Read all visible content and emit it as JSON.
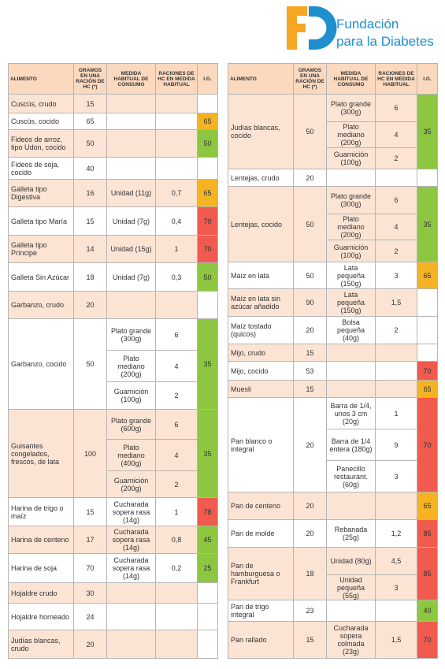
{
  "logo": {
    "line1": "Fundación",
    "line2": "para la Diabetes"
  },
  "columns": [
    "ALIMENTO",
    "GRAMOS EN UNA RACIÓN DE HC (*)",
    "MEDIDA HABITUAL DE CONSUMO",
    "RACIONES DE HC EN MEDIDA HABITUAL",
    "I.G."
  ],
  "tables": [
    {
      "rows": [
        {
          "food": "Cuscús, crudo",
          "grams": 15,
          "measures": []
        },
        {
          "food": "Cuscús, cocido",
          "grams": 65,
          "measures": [],
          "ig": 65,
          "ig_color": "#f5b324"
        },
        {
          "food": "Fideos de arroz, tipo Udon, cocido",
          "grams": 50,
          "measures": [],
          "ig": 50,
          "ig_color": "#8dc641"
        },
        {
          "food": "Fideos de soja, cocido",
          "grams": 40,
          "measures": []
        },
        {
          "food": "Galleta tipo Digestiva",
          "grams": 16,
          "measures": [
            {
              "measure": "Unidad (11g)",
              "rations": "0,7"
            }
          ],
          "ig": 65,
          "ig_color": "#f5b324"
        },
        {
          "food": "Galleta tipo María",
          "grams": 15,
          "measures": [
            {
              "measure": "Unidad (7g)",
              "rations": "0,4"
            }
          ],
          "ig": 70,
          "ig_color": "#f05a4f"
        },
        {
          "food": "Galleta tipo Príncipe",
          "grams": 14,
          "measures": [
            {
              "measure": "Unidad (15g)",
              "rations": "1"
            }
          ],
          "ig": 70,
          "ig_color": "#f05a4f"
        },
        {
          "food": "Galleta Sin Azúcar",
          "grams": 18,
          "measures": [
            {
              "measure": "Unidad (7g)",
              "rations": "0,3"
            }
          ],
          "ig": 50,
          "ig_color": "#8dc641"
        },
        {
          "food": "Garbanzo, crudo",
          "grams": 20,
          "measures": []
        },
        {
          "food": "Garbanzo, cocido",
          "grams": 50,
          "measures": [
            {
              "measure": "Plato grande (300g)",
              "rations": "6"
            },
            {
              "measure": "Plato mediano (200g)",
              "rations": "4"
            },
            {
              "measure": "Guarnición (100g)",
              "rations": "2"
            }
          ],
          "ig": 35,
          "ig_color": "#8dc641"
        },
        {
          "food": "Guisantes congelados, frescos, de lata",
          "grams": 100,
          "measures": [
            {
              "measure": "Plato grande (600g)",
              "rations": "6"
            },
            {
              "measure": "Plato mediano (400g)",
              "rations": "4"
            },
            {
              "measure": "Guarnición (200g)",
              "rations": "2"
            }
          ],
          "ig": 35,
          "ig_color": "#8dc641"
        },
        {
          "food": "Harina de trigo o maíz",
          "grams": 15,
          "measures": [
            {
              "measure": "Cucharada sopera rasa (14g)",
              "rations": "1"
            }
          ],
          "ig": 78,
          "ig_color": "#f05a4f"
        },
        {
          "food": "Harina de centeno",
          "grams": 17,
          "measures": [
            {
              "measure": "Cucharada sopera rasa (14g)",
              "rations": "0,8"
            }
          ],
          "ig": 45,
          "ig_color": "#8dc641"
        },
        {
          "food": "Harina de soja",
          "grams": 70,
          "measures": [
            {
              "measure": "Cucharada sopera rasa (14g)",
              "rations": "0,2"
            }
          ],
          "ig": 25,
          "ig_color": "#8dc641"
        },
        {
          "food": "Hojaldre crudo",
          "grams": 30,
          "measures": []
        },
        {
          "food": "Hojaldre horneado",
          "grams": 24,
          "measures": []
        },
        {
          "food": "Judías blancas, crudo",
          "grams": 20,
          "measures": []
        }
      ]
    },
    {
      "rows": [
        {
          "food": "Judías blancas, cocido",
          "grams": 50,
          "measures": [
            {
              "measure": "Plato grande (300g)",
              "rations": "6"
            },
            {
              "measure": "Plato mediano (200g)",
              "rations": "4"
            },
            {
              "measure": "Guarnición (100g)",
              "rations": "2"
            }
          ],
          "ig": 35,
          "ig_color": "#8dc641"
        },
        {
          "food": "Lentejas, crudo",
          "grams": 20,
          "measures": []
        },
        {
          "food": "Lentejas, cocido",
          "grams": 50,
          "measures": [
            {
              "measure": "Plato grande (300g)",
              "rations": "6"
            },
            {
              "measure": "Plato mediano (200g)",
              "rations": "4"
            },
            {
              "measure": "Guarnición (100g)",
              "rations": "2"
            }
          ],
          "ig": 35,
          "ig_color": "#8dc641"
        },
        {
          "food": "Maíz en lata",
          "grams": 50,
          "measures": [
            {
              "measure": "Lata pequeña (150g)",
              "rations": "3"
            }
          ],
          "ig": 65,
          "ig_color": "#f5b324"
        },
        {
          "food": "Maíz en lata sin azúcar añadido",
          "grams": 90,
          "measures": [
            {
              "measure": "Lata pequeña (150g)",
              "rations": "1,5"
            }
          ]
        },
        {
          "food": "Maíz tostado (quicos)",
          "grams": 20,
          "measures": [
            {
              "measure": "Bolsa pequeña (40g)",
              "rations": "2"
            }
          ]
        },
        {
          "food": "Mijo, crudo",
          "grams": 15,
          "measures": []
        },
        {
          "food": "Mijo, cocido",
          "grams": 53,
          "measures": [],
          "ig": 70,
          "ig_color": "#f05a4f"
        },
        {
          "food": "Muesli",
          "grams": 15,
          "measures": [],
          "ig": 65,
          "ig_color": "#f5b324"
        },
        {
          "food": "Pan blanco o integral",
          "grams": 20,
          "measures": [
            {
              "measure": "Barra de 1/4, unos 3 cm (20g)",
              "rations": "1"
            },
            {
              "measure": "Barra de 1/4 entera (180g)",
              "rations": "9"
            },
            {
              "measure": "Panecillo restaurant. (60g)",
              "rations": "3"
            }
          ],
          "ig": 70,
          "ig_color": "#f05a4f"
        },
        {
          "food": "Pan de centeno",
          "grams": 20,
          "measures": [],
          "ig": 65,
          "ig_color": "#f5b324"
        },
        {
          "food": "Pan de molde",
          "grams": 20,
          "measures": [
            {
              "measure": "Rebanada (25g)",
              "rations": "1,2"
            }
          ],
          "ig": 85,
          "ig_color": "#f05a4f"
        },
        {
          "food": "Pan de hamburguesa o Frankfurt",
          "grams": 18,
          "measures": [
            {
              "measure": "Unidad (80g)",
              "rations": "4,5"
            },
            {
              "measure": "Unidad pequeña (55g)",
              "rations": "3"
            }
          ],
          "ig": 85,
          "ig_color": "#f05a4f"
        },
        {
          "food": "Pan de trigo integral",
          "grams": 23,
          "measures": [],
          "ig": 40,
          "ig_color": "#8dc641"
        },
        {
          "food": "Pan rallado",
          "grams": 15,
          "measures": [
            {
              "measure": "Cucharada sopera colmada (23g)",
              "rations": "1,5"
            }
          ],
          "ig": 70,
          "ig_color": "#f05a4f"
        }
      ]
    }
  ]
}
